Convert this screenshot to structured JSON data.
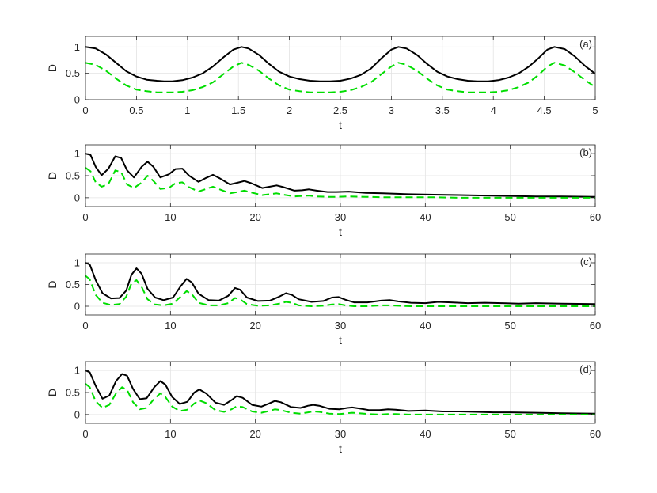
{
  "figure": {
    "background": "#ffffff",
    "colors": {
      "black_series": "#000000",
      "green_series": "#00dd00",
      "grid": "#e3e3e3",
      "axis": "#262626"
    }
  },
  "chart_data": [
    {
      "type": "line",
      "panel_label": "(a)",
      "xlabel": "t",
      "ylabel": "D",
      "xlim": [
        0,
        5
      ],
      "ylim": [
        0,
        1.2
      ],
      "xticks": [
        0,
        0.5,
        1,
        1.5,
        2,
        2.5,
        3,
        3.5,
        4,
        4.5,
        5
      ],
      "xtick_labels": [
        "0",
        "0.5",
        "1",
        "1.5",
        "2",
        "2.5",
        "3",
        "3.5",
        "4",
        "4.5",
        "5"
      ],
      "yticks": [
        0,
        0.5,
        1
      ],
      "ytick_labels": [
        "0",
        "0.5",
        "1"
      ],
      "grid": true,
      "series": [
        {
          "style": "solid",
          "color": "#000000",
          "x": [
            0,
            0.1,
            0.2,
            0.3,
            0.4,
            0.5,
            0.6,
            0.7,
            0.77,
            0.85,
            0.95,
            1.05,
            1.15,
            1.25,
            1.35,
            1.45,
            1.53,
            1.6,
            1.7,
            1.8,
            1.9,
            2.0,
            2.1,
            2.2,
            2.3,
            2.4,
            2.5,
            2.6,
            2.7,
            2.8,
            2.9,
            3.0,
            3.07,
            3.15,
            3.25,
            3.35,
            3.45,
            3.55,
            3.65,
            3.75,
            3.84,
            3.95,
            4.05,
            4.15,
            4.25,
            4.35,
            4.45,
            4.53,
            4.6,
            4.7,
            4.8,
            4.9,
            5.0
          ],
          "y": [
            1.0,
            0.97,
            0.86,
            0.7,
            0.54,
            0.44,
            0.38,
            0.36,
            0.35,
            0.35,
            0.37,
            0.42,
            0.5,
            0.63,
            0.8,
            0.95,
            1.0,
            0.97,
            0.85,
            0.68,
            0.53,
            0.44,
            0.39,
            0.36,
            0.35,
            0.35,
            0.36,
            0.4,
            0.47,
            0.59,
            0.78,
            0.95,
            1.0,
            0.97,
            0.85,
            0.68,
            0.53,
            0.44,
            0.39,
            0.36,
            0.35,
            0.35,
            0.37,
            0.42,
            0.5,
            0.63,
            0.8,
            0.95,
            1.0,
            0.96,
            0.82,
            0.64,
            0.49
          ]
        },
        {
          "style": "dashed",
          "color": "#00dd00",
          "x": [
            0,
            0.1,
            0.2,
            0.3,
            0.4,
            0.5,
            0.6,
            0.7,
            0.77,
            0.85,
            0.95,
            1.05,
            1.15,
            1.25,
            1.35,
            1.45,
            1.53,
            1.6,
            1.7,
            1.8,
            1.9,
            2.0,
            2.1,
            2.2,
            2.3,
            2.4,
            2.5,
            2.6,
            2.7,
            2.8,
            2.9,
            3.0,
            3.07,
            3.15,
            3.25,
            3.35,
            3.45,
            3.55,
            3.65,
            3.75,
            3.84,
            3.95,
            4.05,
            4.15,
            4.25,
            4.35,
            4.45,
            4.53,
            4.6,
            4.7,
            4.8,
            4.9,
            5.0
          ],
          "y": [
            0.7,
            0.66,
            0.55,
            0.4,
            0.27,
            0.19,
            0.16,
            0.14,
            0.14,
            0.14,
            0.15,
            0.18,
            0.24,
            0.33,
            0.48,
            0.63,
            0.7,
            0.66,
            0.55,
            0.4,
            0.27,
            0.19,
            0.16,
            0.14,
            0.14,
            0.14,
            0.15,
            0.18,
            0.24,
            0.33,
            0.48,
            0.63,
            0.7,
            0.66,
            0.55,
            0.4,
            0.27,
            0.19,
            0.16,
            0.14,
            0.14,
            0.14,
            0.15,
            0.18,
            0.24,
            0.33,
            0.48,
            0.63,
            0.7,
            0.65,
            0.52,
            0.37,
            0.24
          ]
        }
      ]
    },
    {
      "type": "line",
      "panel_label": "(b)",
      "xlabel": "t",
      "ylabel": "D",
      "xlim": [
        0,
        60
      ],
      "ylim": [
        -0.2,
        1.2
      ],
      "xticks": [
        0,
        10,
        20,
        30,
        40,
        50,
        60
      ],
      "xtick_labels": [
        "0",
        "10",
        "20",
        "30",
        "40",
        "50",
        "60"
      ],
      "yticks": [
        0,
        0.5,
        1
      ],
      "ytick_labels": [
        "0",
        "0.5",
        "1"
      ],
      "grid": true,
      "series": [
        {
          "style": "solid",
          "color": "#000000",
          "x": [
            0,
            0.6,
            1.2,
            1.9,
            2.7,
            3.5,
            4.2,
            4.9,
            5.7,
            6.6,
            7.3,
            8.0,
            8.8,
            9.8,
            10.6,
            11.4,
            12.2,
            13.3,
            14.2,
            15.0,
            15.8,
            17.0,
            17.9,
            18.7,
            19.5,
            20.8,
            21.7,
            22.5,
            23.3,
            24.6,
            25.5,
            26.3,
            27.2,
            28.5,
            29.5,
            31,
            33,
            35,
            38,
            41,
            44,
            47,
            50,
            53,
            56,
            60
          ],
          "y": [
            1.0,
            0.97,
            0.7,
            0.51,
            0.66,
            0.94,
            0.9,
            0.62,
            0.46,
            0.7,
            0.82,
            0.7,
            0.46,
            0.53,
            0.65,
            0.66,
            0.5,
            0.36,
            0.45,
            0.52,
            0.44,
            0.3,
            0.34,
            0.38,
            0.33,
            0.22,
            0.25,
            0.28,
            0.24,
            0.16,
            0.17,
            0.19,
            0.16,
            0.13,
            0.13,
            0.14,
            0.11,
            0.1,
            0.08,
            0.07,
            0.06,
            0.05,
            0.04,
            0.03,
            0.03,
            0.02
          ]
        },
        {
          "style": "dashed",
          "color": "#00dd00",
          "x": [
            0,
            0.6,
            1.2,
            1.9,
            2.7,
            3.5,
            4.2,
            4.9,
            5.7,
            6.6,
            7.3,
            8.0,
            8.8,
            9.8,
            10.6,
            11.4,
            12.2,
            13.3,
            14.2,
            15.0,
            15.8,
            17.0,
            17.9,
            18.7,
            19.5,
            20.8,
            21.7,
            22.5,
            23.3,
            24.6,
            25.5,
            26.3,
            27.2,
            28.5,
            29.5,
            31,
            33,
            35,
            38,
            41,
            44,
            47,
            50,
            53,
            56,
            60
          ],
          "y": [
            0.68,
            0.6,
            0.35,
            0.25,
            0.31,
            0.62,
            0.58,
            0.3,
            0.22,
            0.34,
            0.5,
            0.38,
            0.2,
            0.22,
            0.33,
            0.35,
            0.24,
            0.14,
            0.2,
            0.25,
            0.19,
            0.1,
            0.13,
            0.16,
            0.12,
            0.06,
            0.08,
            0.1,
            0.07,
            0.03,
            0.04,
            0.05,
            0.03,
            0.02,
            0.02,
            0.03,
            0.02,
            0.01,
            0.01,
            0.01,
            0.0,
            0.0,
            0.0,
            0.0,
            0.0,
            0.0
          ]
        }
      ]
    },
    {
      "type": "line",
      "panel_label": "(c)",
      "xlabel": "t",
      "ylabel": "D",
      "xlim": [
        0,
        60
      ],
      "ylim": [
        -0.2,
        1.2
      ],
      "xticks": [
        0,
        10,
        20,
        30,
        40,
        50,
        60
      ],
      "xtick_labels": [
        "0",
        "10",
        "20",
        "30",
        "40",
        "50",
        "60"
      ],
      "yticks": [
        0,
        0.5,
        1
      ],
      "ytick_labels": [
        "0",
        "0.5",
        "1"
      ],
      "grid": true,
      "series": [
        {
          "style": "solid",
          "color": "#000000",
          "x": [
            0,
            0.5,
            1.2,
            2.0,
            3.0,
            4.0,
            4.8,
            5.4,
            6.0,
            6.6,
            7.3,
            8.2,
            9.2,
            10.3,
            11.2,
            11.9,
            12.5,
            13.3,
            14.5,
            15.7,
            16.8,
            17.6,
            18.2,
            19.0,
            20.3,
            21.7,
            22.8,
            23.6,
            24.3,
            25.1,
            26.6,
            28.0,
            29.0,
            29.8,
            30.6,
            31.6,
            33.2,
            34.8,
            35.8,
            36.8,
            38.3,
            40.0,
            41.5,
            43,
            45,
            47,
            49,
            51,
            53,
            56,
            60
          ],
          "y": [
            1.0,
            0.96,
            0.6,
            0.3,
            0.18,
            0.19,
            0.36,
            0.72,
            0.87,
            0.75,
            0.4,
            0.2,
            0.14,
            0.2,
            0.46,
            0.63,
            0.55,
            0.29,
            0.14,
            0.13,
            0.24,
            0.42,
            0.38,
            0.2,
            0.12,
            0.13,
            0.22,
            0.3,
            0.26,
            0.16,
            0.1,
            0.12,
            0.2,
            0.21,
            0.15,
            0.09,
            0.09,
            0.13,
            0.14,
            0.11,
            0.08,
            0.07,
            0.1,
            0.09,
            0.07,
            0.08,
            0.07,
            0.06,
            0.07,
            0.06,
            0.05
          ]
        },
        {
          "style": "dashed",
          "color": "#00dd00",
          "x": [
            0,
            0.5,
            1.2,
            2.0,
            3.0,
            4.0,
            4.8,
            5.4,
            6.0,
            6.6,
            7.3,
            8.2,
            9.2,
            10.3,
            11.2,
            11.9,
            12.5,
            13.3,
            14.5,
            15.7,
            16.8,
            17.6,
            18.2,
            19.0,
            20.3,
            21.7,
            22.8,
            23.6,
            24.3,
            25.1,
            26.6,
            28.0,
            29.0,
            29.8,
            30.6,
            31.6,
            33.2,
            34.8,
            35.8,
            36.8,
            38.3,
            40.0,
            41.5,
            43,
            45,
            47,
            49,
            51,
            53,
            56,
            60
          ],
          "y": [
            0.7,
            0.62,
            0.26,
            0.08,
            0.03,
            0.05,
            0.22,
            0.52,
            0.6,
            0.45,
            0.16,
            0.04,
            0.02,
            0.06,
            0.22,
            0.35,
            0.28,
            0.08,
            0.02,
            0.02,
            0.07,
            0.19,
            0.16,
            0.05,
            0.01,
            0.02,
            0.06,
            0.1,
            0.08,
            0.02,
            0.0,
            0.01,
            0.04,
            0.05,
            0.02,
            0.0,
            0.0,
            0.02,
            0.02,
            0.01,
            0.0,
            0.0,
            0.0,
            0.0,
            0.0,
            0.0,
            0.0,
            0.0,
            0.0,
            0.0,
            0.0
          ]
        }
      ]
    },
    {
      "type": "line",
      "panel_label": "(d)",
      "xlabel": "t",
      "ylabel": "D",
      "xlim": [
        0,
        60
      ],
      "ylim": [
        -0.2,
        1.2
      ],
      "xticks": [
        0,
        10,
        20,
        30,
        40,
        50,
        60
      ],
      "xtick_labels": [
        "0",
        "10",
        "20",
        "30",
        "40",
        "50",
        "60"
      ],
      "yticks": [
        0,
        0.5,
        1
      ],
      "ytick_labels": [
        "0",
        "0.5",
        "1"
      ],
      "grid": true,
      "series": [
        {
          "style": "solid",
          "color": "#000000",
          "x": [
            0,
            0.5,
            1.2,
            2.0,
            2.8,
            3.6,
            4.3,
            4.9,
            5.6,
            6.4,
            7.2,
            8.1,
            8.8,
            9.4,
            10.2,
            11.1,
            12.0,
            12.8,
            13.4,
            14.2,
            15.3,
            16.3,
            17.2,
            17.8,
            18.5,
            19.6,
            20.7,
            21.6,
            22.3,
            23.0,
            24.2,
            25.3,
            26.2,
            26.8,
            27.5,
            28.7,
            29.9,
            30.8,
            31.4,
            32.2,
            33.4,
            34.6,
            35.6,
            36.5,
            38,
            40,
            42,
            44,
            46,
            48,
            50,
            53,
            56,
            60
          ],
          "y": [
            1.0,
            0.96,
            0.65,
            0.36,
            0.43,
            0.76,
            0.92,
            0.88,
            0.58,
            0.35,
            0.37,
            0.62,
            0.76,
            0.68,
            0.4,
            0.24,
            0.29,
            0.5,
            0.57,
            0.48,
            0.27,
            0.22,
            0.33,
            0.42,
            0.38,
            0.22,
            0.18,
            0.25,
            0.31,
            0.28,
            0.17,
            0.15,
            0.2,
            0.22,
            0.2,
            0.13,
            0.12,
            0.15,
            0.16,
            0.14,
            0.1,
            0.1,
            0.12,
            0.11,
            0.08,
            0.09,
            0.07,
            0.07,
            0.06,
            0.05,
            0.05,
            0.04,
            0.03,
            0.02
          ]
        },
        {
          "style": "dashed",
          "color": "#00dd00",
          "x": [
            0,
            0.5,
            1.2,
            2.0,
            2.8,
            3.6,
            4.3,
            4.9,
            5.6,
            6.4,
            7.2,
            8.1,
            8.8,
            9.4,
            10.2,
            11.1,
            12.0,
            12.8,
            13.4,
            14.2,
            15.3,
            16.3,
            17.2,
            17.8,
            18.5,
            19.6,
            20.7,
            21.6,
            22.3,
            23.0,
            24.2,
            25.3,
            26.2,
            26.8,
            27.5,
            28.7,
            29.9,
            30.8,
            31.4,
            32.2,
            33.4,
            34.6,
            35.6,
            36.5,
            38,
            40,
            42,
            44,
            46,
            48,
            50,
            53,
            56,
            60
          ],
          "y": [
            0.7,
            0.62,
            0.3,
            0.15,
            0.22,
            0.48,
            0.62,
            0.56,
            0.28,
            0.12,
            0.15,
            0.36,
            0.48,
            0.4,
            0.18,
            0.08,
            0.11,
            0.25,
            0.32,
            0.26,
            0.1,
            0.06,
            0.12,
            0.19,
            0.17,
            0.07,
            0.04,
            0.08,
            0.12,
            0.1,
            0.04,
            0.02,
            0.05,
            0.07,
            0.06,
            0.02,
            0.01,
            0.03,
            0.04,
            0.03,
            0.01,
            0.0,
            0.01,
            0.01,
            0.0,
            0.0,
            0.0,
            0.0,
            0.0,
            0.0,
            0.0,
            0.0,
            0.0,
            0.0
          ]
        }
      ]
    }
  ]
}
